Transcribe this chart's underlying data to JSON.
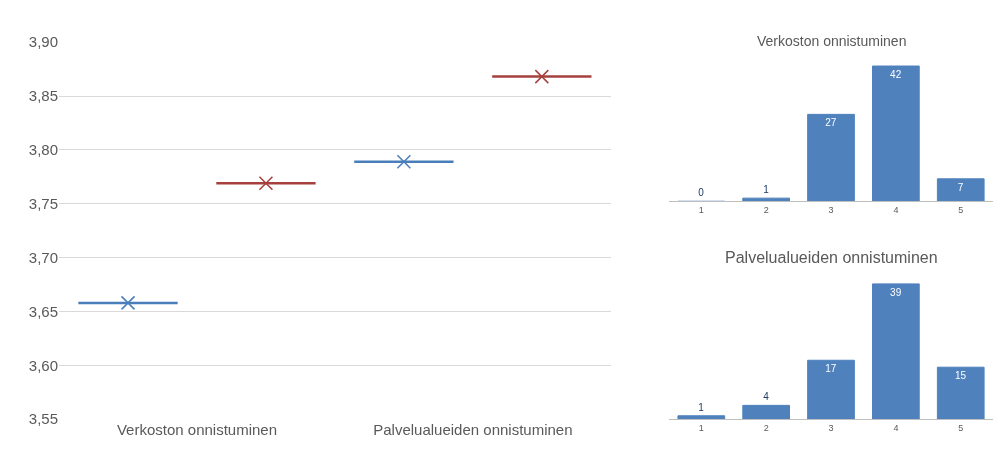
{
  "chart_data": [
    {
      "type": "scatter",
      "categories": [
        "Verkoston onnistuminen",
        "Palvelualueiden onnistuminen"
      ],
      "series": [
        {
          "color": "#4a7ebb",
          "values": [
            3.658,
            3.789
          ]
        },
        {
          "color": "#a5403d",
          "values": [
            3.769,
            3.868
          ]
        }
      ],
      "marker": "cross",
      "ylim": [
        3.55,
        3.9
      ],
      "yticks": [
        {
          "value": 3.55,
          "label": "3,55"
        },
        {
          "value": 3.6,
          "label": "3,60"
        },
        {
          "value": 3.65,
          "label": "3,65"
        },
        {
          "value": 3.7,
          "label": "3,70"
        },
        {
          "value": 3.75,
          "label": "3,75"
        },
        {
          "value": 3.8,
          "label": "3,80"
        },
        {
          "value": 3.85,
          "label": "3,85"
        },
        {
          "value": 3.9,
          "label": "3,90"
        }
      ],
      "grid": "y"
    },
    {
      "type": "bar",
      "title": "Verkoston onnistuminen",
      "categories": [
        "1",
        "2",
        "3",
        "4",
        "5"
      ],
      "values": [
        0,
        1,
        27,
        42,
        7
      ],
      "color": "#4f81bd",
      "data_labels": true,
      "tick_labels": "x"
    },
    {
      "type": "bar",
      "title": "Palvelualueiden onnistuminen",
      "categories": [
        "1",
        "2",
        "3",
        "4",
        "5"
      ],
      "values": [
        1,
        4,
        17,
        39,
        15
      ],
      "color": "#4f81bd",
      "data_labels": true,
      "tick_labels": "x"
    }
  ]
}
